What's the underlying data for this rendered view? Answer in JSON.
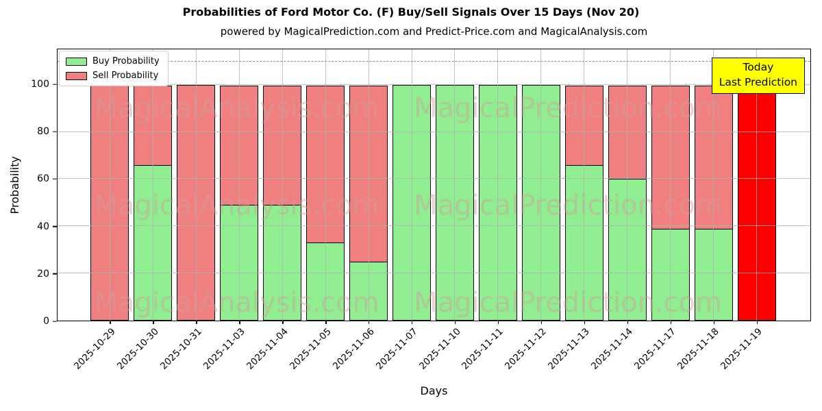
{
  "header": {
    "title": "Probabilities of Ford Motor Co. (F) Buy/Sell Signals Over 15 Days (Nov 20)",
    "subtitle": "powered by MagicalPrediction.com and Predict-Price.com and MagicalAnalysis.com"
  },
  "axes": {
    "ylabel": "Probability",
    "xlabel": "Days",
    "yticks": [
      0,
      20,
      40,
      60,
      80,
      100
    ],
    "ymax": 115,
    "reference_line_y": 110
  },
  "legend": {
    "items": [
      {
        "label": "Buy Probability",
        "color": "#90ee90"
      },
      {
        "label": "Sell Probability",
        "color": "#f08080"
      }
    ]
  },
  "annotation": {
    "line1": "Today",
    "line2": "Last Prediction",
    "bg_color": "#ffff00"
  },
  "watermarks": {
    "left_text": "MagicalAnalysis.com",
    "right_text": "MagicalPrediction.com"
  },
  "colors": {
    "buy": "#90ee90",
    "sell": "#f08080",
    "today": "#ff0000",
    "grid": "#b0b0b0",
    "bar_edge": "#000000"
  },
  "chart_data": {
    "type": "bar",
    "stacked": true,
    "title": "Probabilities of Ford Motor Co. (F) Buy/Sell Signals Over 15 Days (Nov 20)",
    "xlabel": "Days",
    "ylabel": "Probability",
    "ylim": [
      0,
      115
    ],
    "grid": true,
    "legend_position": "upper left",
    "reference_line": {
      "y": 110,
      "style": "dashed"
    },
    "categories": [
      "2025-10-29",
      "2025-10-30",
      "2025-10-31",
      "2025-11-03",
      "2025-11-04",
      "2025-11-05",
      "2025-11-06",
      "2025-11-07",
      "2025-11-10",
      "2025-11-11",
      "2025-11-12",
      "2025-11-13",
      "2025-11-14",
      "2025-11-17",
      "2025-11-18",
      "2025-11-19"
    ],
    "series": [
      {
        "name": "Buy Probability",
        "color": "#90ee90",
        "values": [
          0,
          66,
          0,
          49,
          49,
          33,
          25,
          100,
          100,
          100,
          100,
          66,
          60,
          39,
          39,
          0
        ]
      },
      {
        "name": "Sell Probability",
        "color": "#f08080",
        "values": [
          100,
          34,
          100,
          51,
          51,
          67,
          75,
          0,
          0,
          0,
          0,
          34,
          40,
          61,
          61,
          0
        ]
      },
      {
        "name": "Today Last Prediction",
        "color": "#ff0000",
        "values": [
          0,
          0,
          0,
          0,
          0,
          0,
          0,
          0,
          0,
          0,
          0,
          0,
          0,
          0,
          0,
          100
        ]
      }
    ]
  }
}
